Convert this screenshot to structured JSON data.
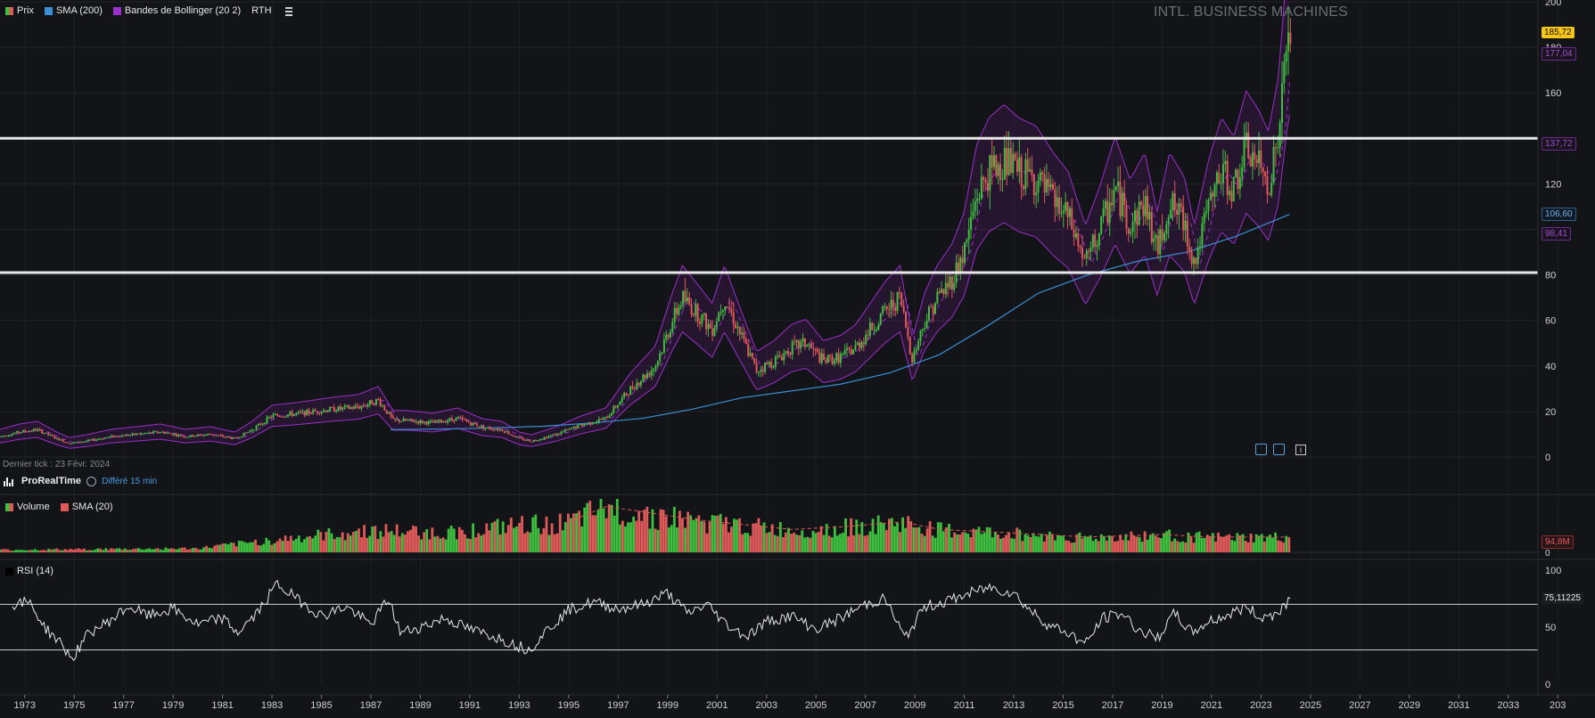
{
  "main_legend": {
    "price_label": "Prix",
    "sma_label": "SMA (200)",
    "bollinger_label": "Bandes de Bollinger (20 2)",
    "rth_label": "RTH",
    "settings_icon": "list-settings-icon"
  },
  "watermark": "INTL. BUSINESS MACHINES",
  "last_tick": "Dernier tick : 23 Févr. 2024",
  "brand": {
    "name": "ProRealTime",
    "delay": "Différé 15 min"
  },
  "volume_legend": {
    "volume_label": "Volume",
    "sma_label": "SMA (20)"
  },
  "rsi_legend": {
    "label": "RSI (14)"
  },
  "price_tags": {
    "last_price": "185,72",
    "bb_upper": "177,04",
    "bb_mid": "137,72",
    "sma200": "106,60",
    "bb_lower": "98,41",
    "volume_sma": "94,8M",
    "rsi": "75,11225"
  },
  "colors": {
    "background": "#131417",
    "up": "#3fbf3f",
    "down": "#e05a5a",
    "sma200": "#3a8fd6",
    "bollinger": "#9b2fc9",
    "last_price_tag": "#f5c518",
    "level_lines": "#e8e8e8"
  },
  "chart_data": [
    {
      "type": "candlestick",
      "name": "price",
      "x_ticks": [
        "1973",
        "1975",
        "1977",
        "1979",
        "1981",
        "1983",
        "1985",
        "1987",
        "1989",
        "1991",
        "1993",
        "1995",
        "1997",
        "1999",
        "2001",
        "2003",
        "2005",
        "2007",
        "2009",
        "2011",
        "2013",
        "2015",
        "2017",
        "2019",
        "2021",
        "2023",
        "2025",
        "2027",
        "2029",
        "2031",
        "2033",
        "203"
      ],
      "y_ticks": [
        0,
        20,
        40,
        60,
        80,
        100,
        120,
        140,
        160,
        180,
        200
      ],
      "y_tick_labels": [
        "0",
        "20",
        "40",
        "60",
        "80",
        "",
        "120",
        "",
        "160",
        "180",
        "200"
      ],
      "ylim": [
        0,
        200
      ],
      "x_range": [
        1972.0,
        2034.2
      ],
      "horizontal_levels": [
        81,
        140
      ],
      "price_path": [
        [
          1972.0,
          9
        ],
        [
          1972.8,
          11
        ],
        [
          1973.5,
          12
        ],
        [
          1974.3,
          8
        ],
        [
          1974.8,
          6
        ],
        [
          1975.5,
          7
        ],
        [
          1976.5,
          9
        ],
        [
          1977.5,
          10
        ],
        [
          1978.5,
          11
        ],
        [
          1979.5,
          9
        ],
        [
          1980.5,
          10
        ],
        [
          1981.5,
          8
        ],
        [
          1982.2,
          12
        ],
        [
          1983.0,
          18
        ],
        [
          1984.0,
          19
        ],
        [
          1985.5,
          21
        ],
        [
          1986.5,
          22
        ],
        [
          1987.3,
          25
        ],
        [
          1987.9,
          16
        ],
        [
          1988.5,
          16
        ],
        [
          1989.5,
          15
        ],
        [
          1990.5,
          17
        ],
        [
          1991.5,
          13
        ],
        [
          1992.3,
          12
        ],
        [
          1993.0,
          8
        ],
        [
          1993.5,
          7
        ],
        [
          1994.5,
          10
        ],
        [
          1995.5,
          14
        ],
        [
          1996.5,
          17
        ],
        [
          1997.5,
          30
        ],
        [
          1998.5,
          40
        ],
        [
          1999.2,
          60
        ],
        [
          1999.6,
          70
        ],
        [
          2000.3,
          62
        ],
        [
          2000.8,
          56
        ],
        [
          2001.3,
          70
        ],
        [
          2001.9,
          55
        ],
        [
          2002.6,
          38
        ],
        [
          2003.3,
          42
        ],
        [
          2004.0,
          48
        ],
        [
          2004.6,
          50
        ],
        [
          2005.3,
          42
        ],
        [
          2006.0,
          44
        ],
        [
          2006.6,
          48
        ],
        [
          2007.2,
          56
        ],
        [
          2007.8,
          64
        ],
        [
          2008.4,
          70
        ],
        [
          2008.9,
          43
        ],
        [
          2009.4,
          60
        ],
        [
          2009.9,
          70
        ],
        [
          2010.5,
          78
        ],
        [
          2011.0,
          90
        ],
        [
          2011.5,
          115
        ],
        [
          2012.0,
          125
        ],
        [
          2012.6,
          130
        ],
        [
          2013.2,
          125
        ],
        [
          2013.9,
          122
        ],
        [
          2014.6,
          112
        ],
        [
          2015.2,
          105
        ],
        [
          2015.9,
          85
        ],
        [
          2016.5,
          100
        ],
        [
          2017.1,
          118
        ],
        [
          2017.7,
          102
        ],
        [
          2018.3,
          112
        ],
        [
          2018.8,
          90
        ],
        [
          2019.3,
          112
        ],
        [
          2019.9,
          103
        ],
        [
          2020.3,
          85
        ],
        [
          2020.9,
          110
        ],
        [
          2021.4,
          125
        ],
        [
          2021.9,
          118
        ],
        [
          2022.4,
          135
        ],
        [
          2022.9,
          128
        ],
        [
          2023.3,
          120
        ],
        [
          2023.7,
          140
        ],
        [
          2024.0,
          175
        ],
        [
          2024.15,
          190
        ],
        [
          2024.2,
          186
        ]
      ],
      "sma200_path": [
        [
          1987.8,
          12
        ],
        [
          1991,
          12.5
        ],
        [
          1994,
          13.5
        ],
        [
          1996,
          15
        ],
        [
          1998,
          17
        ],
        [
          2000,
          21
        ],
        [
          2002,
          26
        ],
        [
          2004,
          29
        ],
        [
          2006,
          32
        ],
        [
          2008,
          37
        ],
        [
          2010,
          45
        ],
        [
          2012,
          58
        ],
        [
          2014,
          72
        ],
        [
          2016,
          80
        ],
        [
          2018,
          86
        ],
        [
          2020,
          90
        ],
        [
          2022,
          97
        ],
        [
          2024.15,
          106.6
        ]
      ],
      "bollinger_upper_last": 177.04,
      "bollinger_mid_last": 137.72,
      "bollinger_lower_last": 98.41,
      "sma200_last": 106.6,
      "last_price": 185.72
    },
    {
      "type": "bar",
      "name": "volume",
      "value_axis_labels": [
        "0"
      ],
      "sma20_last": "94,8M",
      "volume_profile": [
        [
          1972.0,
          0.05
        ],
        [
          1980.0,
          0.08
        ],
        [
          1983.0,
          0.25
        ],
        [
          1987.0,
          0.45
        ],
        [
          1990.0,
          0.4
        ],
        [
          1993.0,
          0.55
        ],
        [
          1995.0,
          0.6
        ],
        [
          1996.5,
          0.9
        ],
        [
          1998.0,
          0.8
        ],
        [
          2000.0,
          0.65
        ],
        [
          2002.0,
          0.55
        ],
        [
          2004.0,
          0.45
        ],
        [
          2006.0,
          0.5
        ],
        [
          2008.5,
          0.6
        ],
        [
          2010.0,
          0.45
        ],
        [
          2013.0,
          0.38
        ],
        [
          2016.0,
          0.3
        ],
        [
          2019.0,
          0.35
        ],
        [
          2021.0,
          0.3
        ],
        [
          2024.2,
          0.3
        ]
      ]
    },
    {
      "type": "line",
      "name": "rsi",
      "y_ticks": [
        0,
        50,
        100
      ],
      "ylim": [
        0,
        100
      ],
      "levels": [
        30,
        70
      ],
      "last_value": "75,11225",
      "rsi_path": [
        [
          1972.5,
          70
        ],
        [
          1973.2,
          72
        ],
        [
          1973.8,
          50
        ],
        [
          1974.5,
          35
        ],
        [
          1974.9,
          22
        ],
        [
          1975.6,
          45
        ],
        [
          1976.4,
          55
        ],
        [
          1977.2,
          68
        ],
        [
          1978.0,
          60
        ],
        [
          1979.0,
          66
        ],
        [
          1980.0,
          52
        ],
        [
          1981.0,
          58
        ],
        [
          1981.6,
          45
        ],
        [
          1982.4,
          62
        ],
        [
          1983.2,
          88
        ],
        [
          1984.0,
          75
        ],
        [
          1985.0,
          60
        ],
        [
          1986.0,
          68
        ],
        [
          1987.0,
          52
        ],
        [
          1987.7,
          75
        ],
        [
          1988.2,
          45
        ],
        [
          1989.0,
          50
        ],
        [
          1990.0,
          58
        ],
        [
          1991.0,
          48
        ],
        [
          1992.0,
          42
        ],
        [
          1992.8,
          35
        ],
        [
          1993.4,
          30
        ],
        [
          1994.0,
          45
        ],
        [
          1995.0,
          65
        ],
        [
          1996.0,
          72
        ],
        [
          1997.0,
          66
        ],
        [
          1998.0,
          70
        ],
        [
          1999.0,
          80
        ],
        [
          1999.8,
          62
        ],
        [
          2000.6,
          70
        ],
        [
          2001.4,
          52
        ],
        [
          2002.2,
          42
        ],
        [
          2003.0,
          55
        ],
        [
          2004.0,
          60
        ],
        [
          2005.0,
          48
        ],
        [
          2006.0,
          58
        ],
        [
          2007.0,
          70
        ],
        [
          2007.8,
          75
        ],
        [
          2008.6,
          40
        ],
        [
          2009.4,
          68
        ],
        [
          2010.2,
          72
        ],
        [
          2011.0,
          78
        ],
        [
          2012.0,
          85
        ],
        [
          2013.0,
          80
        ],
        [
          2013.6,
          66
        ],
        [
          2014.4,
          52
        ],
        [
          2015.2,
          45
        ],
        [
          2015.9,
          35
        ],
        [
          2016.6,
          58
        ],
        [
          2017.4,
          62
        ],
        [
          2018.0,
          48
        ],
        [
          2018.8,
          40
        ],
        [
          2019.5,
          62
        ],
        [
          2020.2,
          45
        ],
        [
          2020.9,
          55
        ],
        [
          2021.6,
          60
        ],
        [
          2022.4,
          68
        ],
        [
          2023.0,
          58
        ],
        [
          2023.6,
          62
        ],
        [
          2024.2,
          75.1
        ]
      ]
    }
  ]
}
